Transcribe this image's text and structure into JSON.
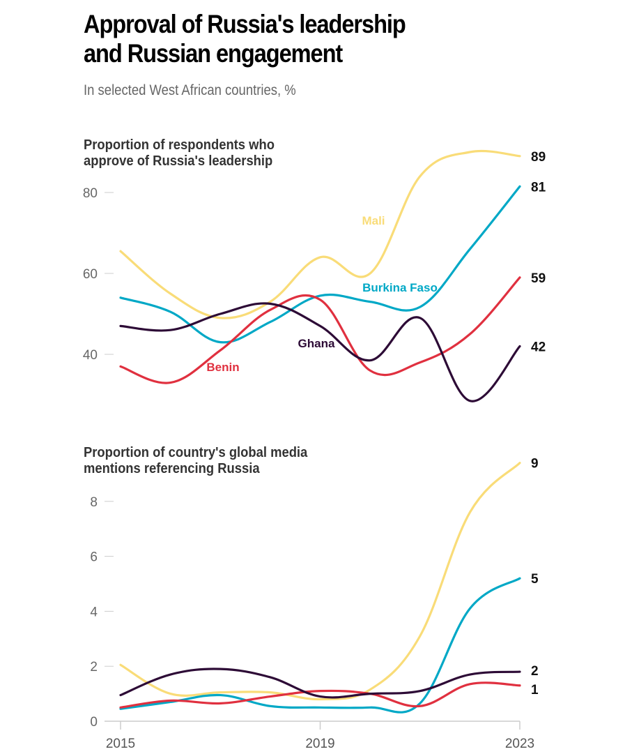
{
  "title_line1": "Approval of Russia's leadership",
  "title_line2": "and Russian engagement",
  "subtitle": "In selected West African countries, %",
  "chart_data": [
    {
      "type": "line",
      "title_line1": "Proportion of respondents who",
      "title_line2": "approve of Russia's leadership",
      "x": [
        2015,
        2016,
        2017,
        2018,
        2019,
        2020,
        2021,
        2022,
        2023
      ],
      "xticks": [
        "2015",
        "2019",
        "2023"
      ],
      "yticks": [
        "40",
        "60",
        "80"
      ],
      "ylim": [
        25,
        92
      ],
      "grid": false,
      "series": [
        {
          "name": "Mali",
          "color": "#f9dc78",
          "values": [
            65.5,
            55,
            49,
            53,
            64,
            60,
            84,
            90,
            89
          ],
          "end_label": "89"
        },
        {
          "name": "Burkina Faso",
          "color": "#00a8c6",
          "values": [
            54,
            50.5,
            43,
            48,
            54.5,
            53,
            51.7,
            66,
            81.5
          ],
          "end_label": "81"
        },
        {
          "name": "Benin",
          "color": "#e0303f",
          "values": [
            37,
            33,
            41,
            51,
            53.5,
            36,
            38,
            45,
            59
          ],
          "end_label": "59"
        },
        {
          "name": "Ghana",
          "color": "#2d0b36",
          "values": [
            47,
            46,
            50,
            52.5,
            47,
            38.5,
            49,
            28.5,
            42
          ],
          "end_label": "42"
        }
      ]
    },
    {
      "type": "line",
      "title_line1": "Proportion of country's global media",
      "title_line2": "mentions referencing Russia",
      "x": [
        2015,
        2016,
        2017,
        2018,
        2019,
        2020,
        2021,
        2022,
        2023
      ],
      "xticks": [
        "2015",
        "2019",
        "2023"
      ],
      "yticks": [
        "0",
        "2",
        "4",
        "6",
        "8"
      ],
      "ylim": [
        0,
        9.6
      ],
      "grid": false,
      "series": [
        {
          "color": "#f9dc78",
          "values": [
            2.05,
            1.0,
            1.05,
            1.05,
            0.8,
            1.15,
            3.1,
            7.6,
            9.4
          ],
          "end_label": "9"
        },
        {
          "color": "#00a8c6",
          "values": [
            0.45,
            0.7,
            0.95,
            0.55,
            0.5,
            0.5,
            0.65,
            4.1,
            5.2
          ],
          "end_label": "5"
        },
        {
          "color": "#e0303f",
          "values": [
            0.5,
            0.75,
            0.65,
            0.9,
            1.1,
            1.0,
            0.55,
            1.35,
            1.3
          ],
          "end_label": "1"
        },
        {
          "color": "#2d0b36",
          "values": [
            0.95,
            1.7,
            1.9,
            1.6,
            0.9,
            1.0,
            1.1,
            1.7,
            1.8
          ],
          "end_label": "2"
        }
      ]
    }
  ]
}
